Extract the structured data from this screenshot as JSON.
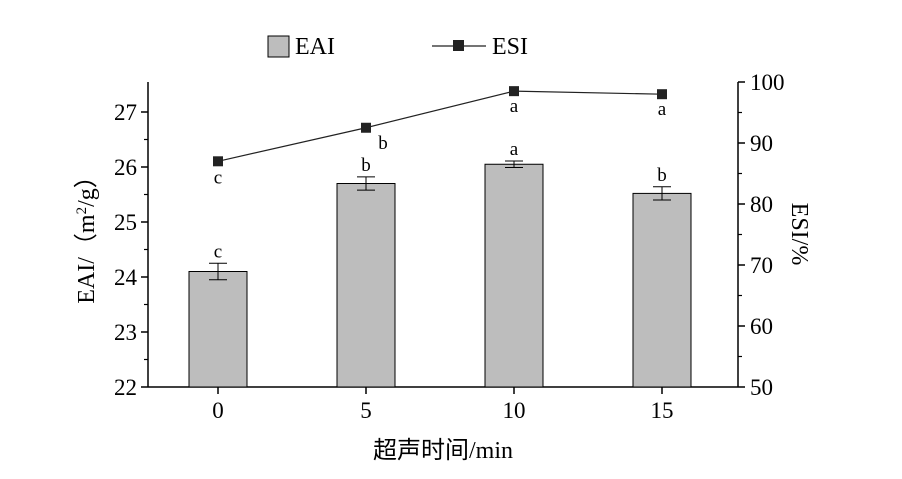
{
  "chart_data": {
    "type": "bar+line",
    "categories": [
      "0",
      "5",
      "10",
      "15"
    ],
    "xlabel": "超声时间/min",
    "ylabel_left": "EAI/（m²/g）",
    "ylabel_left_parts": [
      "EAI/（m",
      "2",
      "/g）"
    ],
    "ylabel_right": "ESI/%",
    "ylim_left": [
      22,
      27.5
    ],
    "ylim_right": [
      50,
      100
    ],
    "yticks_left": [
      "22",
      "23",
      "24",
      "25",
      "26",
      "27"
    ],
    "yticks_right": [
      "50",
      "60",
      "70",
      "80",
      "90",
      "100"
    ],
    "grid": false,
    "legend": "top",
    "series": [
      {
        "name": "EAI",
        "type": "bar",
        "axis": "left",
        "color": "#bdbdbd",
        "values": [
          24.1,
          25.7,
          26.05,
          25.52
        ],
        "errors": [
          0.15,
          0.12,
          0.06,
          0.12
        ],
        "labels": [
          "c",
          "b",
          "a",
          "b"
        ]
      },
      {
        "name": "ESI",
        "type": "line",
        "axis": "right",
        "color": "#222222",
        "values": [
          87.0,
          92.5,
          98.5,
          98.0
        ],
        "labels": [
          "c",
          "b",
          "a",
          "a"
        ]
      }
    ]
  }
}
